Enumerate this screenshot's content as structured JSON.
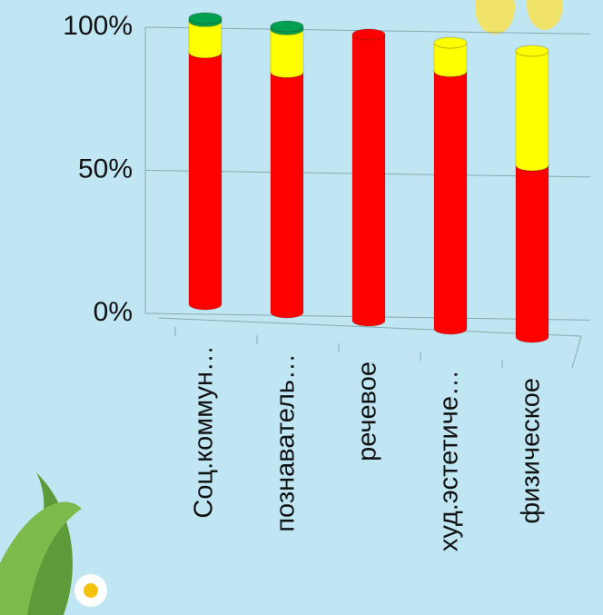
{
  "chart_data": {
    "type": "bar3d-stacked",
    "categories": [
      "Соц.коммун…",
      "познаватель…",
      "речевое",
      "худ.эстетиче…",
      "физическое"
    ],
    "series": [
      {
        "color": "#ff0000",
        "values": [
          88,
          84,
          100,
          90,
          60
        ]
      },
      {
        "color": "#ffff00",
        "values": [
          11,
          15,
          0,
          10,
          40
        ]
      },
      {
        "color": "#00a050",
        "values": [
          1,
          1,
          0,
          0,
          0
        ]
      }
    ],
    "ylim": [
      0,
      100
    ],
    "yticks": [
      {
        "value": 0,
        "label": "0%"
      },
      {
        "value": 50,
        "label": "50%"
      },
      {
        "value": 100,
        "label": "100%"
      }
    ],
    "grid": true
  }
}
